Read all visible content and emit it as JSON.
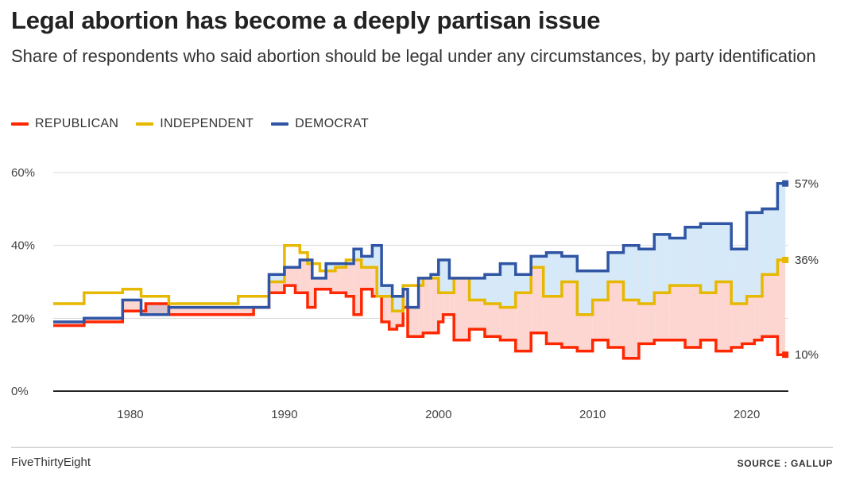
{
  "title": "Legal abortion has become a deeply partisan issue",
  "subtitle": "Share of respondents who said abortion should be legal under any circumstances, by party identification",
  "footer": {
    "brand": "FiveThirtyEight",
    "source": "SOURCE : GALLUP"
  },
  "colors": {
    "republican": "#ff2700",
    "independent": "#e6b800",
    "democrat": "#2f55a4",
    "fill_dem": "#d6e9f8",
    "fill_rep": "#fdd6d2",
    "fill_overlap": "#d9c3cc",
    "grid": "#d8d8d8",
    "axis": "#222222"
  },
  "chart_data": {
    "type": "line",
    "step": true,
    "xlim": [
      1975,
      2022.5
    ],
    "ylim": [
      0,
      60
    ],
    "xticks": [
      "1980",
      "1990",
      "2000",
      "2010",
      "2020"
    ],
    "yticks": [
      "0%",
      "20%",
      "40%",
      "60%"
    ],
    "ytick_values": [
      0,
      20,
      40,
      60
    ],
    "xtick_values": [
      1980,
      1990,
      2000,
      2010,
      2020
    ],
    "grid": true,
    "legend_position": "top-left",
    "end_labels": [
      "57%",
      "36%",
      "10%"
    ],
    "series": [
      {
        "name": "REPUBLICAN",
        "key": "republican",
        "points": [
          [
            1975,
            18
          ],
          [
            1977,
            19
          ],
          [
            1979.5,
            22
          ],
          [
            1981,
            24
          ],
          [
            1982.5,
            21
          ],
          [
            1988,
            23
          ],
          [
            1989,
            27
          ],
          [
            1990,
            29
          ],
          [
            1990.7,
            27
          ],
          [
            1991.5,
            23
          ],
          [
            1992,
            28
          ],
          [
            1993,
            27
          ],
          [
            1994,
            26
          ],
          [
            1994.5,
            21
          ],
          [
            1995,
            28
          ],
          [
            1995.7,
            26
          ],
          [
            1996.3,
            19
          ],
          [
            1996.8,
            17
          ],
          [
            1997.3,
            18
          ],
          [
            1997.7,
            23
          ],
          [
            1998,
            15
          ],
          [
            1999,
            16
          ],
          [
            2000,
            19
          ],
          [
            2000.3,
            21
          ],
          [
            2001,
            14
          ],
          [
            2002,
            17
          ],
          [
            2003,
            15
          ],
          [
            2004,
            14
          ],
          [
            2005,
            11
          ],
          [
            2006,
            16
          ],
          [
            2007,
            13
          ],
          [
            2008,
            12
          ],
          [
            2009,
            11
          ],
          [
            2010,
            14
          ],
          [
            2011,
            12
          ],
          [
            2012,
            9
          ],
          [
            2013,
            13
          ],
          [
            2014,
            14
          ],
          [
            2015,
            14
          ],
          [
            2016,
            12
          ],
          [
            2017,
            14
          ],
          [
            2018,
            11
          ],
          [
            2019,
            12
          ],
          [
            2019.7,
            13
          ],
          [
            2020.5,
            14
          ],
          [
            2021,
            15
          ],
          [
            2022,
            10
          ],
          [
            2022.5,
            10
          ]
        ]
      },
      {
        "name": "INDEPENDENT",
        "key": "independent",
        "points": [
          [
            1975,
            24
          ],
          [
            1977,
            27
          ],
          [
            1979.5,
            28
          ],
          [
            1980.7,
            26
          ],
          [
            1982.5,
            24
          ],
          [
            1987,
            26
          ],
          [
            1989,
            30
          ],
          [
            1990,
            40
          ],
          [
            1991,
            38
          ],
          [
            1991.5,
            35
          ],
          [
            1992.3,
            33
          ],
          [
            1993.3,
            34
          ],
          [
            1994,
            36
          ],
          [
            1995,
            34
          ],
          [
            1996,
            26
          ],
          [
            1997,
            22
          ],
          [
            1997.7,
            29
          ],
          [
            1998.3,
            29
          ],
          [
            1999,
            31
          ],
          [
            2000,
            27
          ],
          [
            2001,
            31
          ],
          [
            2002,
            25
          ],
          [
            2003,
            24
          ],
          [
            2004,
            23
          ],
          [
            2005,
            27
          ],
          [
            2006,
            34
          ],
          [
            2006.8,
            26
          ],
          [
            2008,
            30
          ],
          [
            2009,
            21
          ],
          [
            2010,
            25
          ],
          [
            2011,
            30
          ],
          [
            2012,
            25
          ],
          [
            2013,
            24
          ],
          [
            2014,
            27
          ],
          [
            2015,
            29
          ],
          [
            2016,
            29
          ],
          [
            2017,
            27
          ],
          [
            2018,
            30
          ],
          [
            2019,
            24
          ],
          [
            2020,
            26
          ],
          [
            2021,
            32
          ],
          [
            2022,
            36
          ],
          [
            2022.5,
            36
          ]
        ]
      },
      {
        "name": "DEMOCRAT",
        "key": "democrat",
        "points": [
          [
            1975,
            19
          ],
          [
            1977,
            20
          ],
          [
            1979.5,
            25
          ],
          [
            1980.7,
            21
          ],
          [
            1982.5,
            23
          ],
          [
            1985,
            23
          ],
          [
            1987,
            23
          ],
          [
            1989,
            32
          ],
          [
            1990,
            34
          ],
          [
            1991,
            36
          ],
          [
            1991.8,
            31
          ],
          [
            1992.7,
            35
          ],
          [
            1993.7,
            35
          ],
          [
            1994.5,
            39
          ],
          [
            1995,
            37
          ],
          [
            1995.7,
            40
          ],
          [
            1996.3,
            29
          ],
          [
            1997,
            26
          ],
          [
            1997.7,
            28
          ],
          [
            1998,
            23
          ],
          [
            1998.7,
            31
          ],
          [
            1999.5,
            32
          ],
          [
            2000,
            36
          ],
          [
            2000.7,
            31
          ],
          [
            2002,
            31
          ],
          [
            2003,
            32
          ],
          [
            2004,
            35
          ],
          [
            2005,
            32
          ],
          [
            2006,
            37
          ],
          [
            2007,
            38
          ],
          [
            2008,
            37
          ],
          [
            2009,
            33
          ],
          [
            2010,
            33
          ],
          [
            2011,
            38
          ],
          [
            2012,
            40
          ],
          [
            2013,
            39
          ],
          [
            2014,
            43
          ],
          [
            2015,
            42
          ],
          [
            2016,
            45
          ],
          [
            2017,
            46
          ],
          [
            2018,
            46
          ],
          [
            2019,
            39
          ],
          [
            2020,
            49
          ],
          [
            2021,
            50
          ],
          [
            2022,
            57
          ],
          [
            2022.5,
            57
          ]
        ]
      }
    ]
  }
}
